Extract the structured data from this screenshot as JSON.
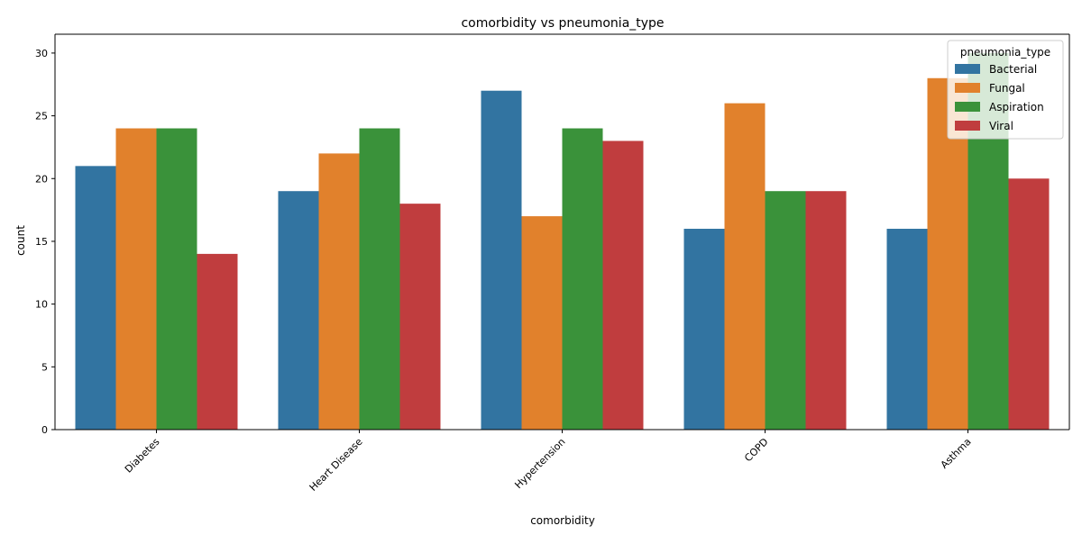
{
  "chart_data": {
    "type": "bar",
    "title": "comorbidity vs pneumonia_type",
    "xlabel": "comorbidity",
    "ylabel": "count",
    "categories": [
      "Diabetes",
      "Heart Disease",
      "Hypertension",
      "COPD",
      "Asthma"
    ],
    "series": [
      {
        "name": "Bacterial",
        "color": "#3274a1",
        "values": [
          21,
          19,
          27,
          16,
          16
        ]
      },
      {
        "name": "Fungal",
        "color": "#e1812c",
        "values": [
          24,
          22,
          17,
          26,
          28
        ]
      },
      {
        "name": "Aspiration",
        "color": "#3a923a",
        "values": [
          24,
          24,
          24,
          19,
          30
        ]
      },
      {
        "name": "Viral",
        "color": "#c03d3e",
        "values": [
          14,
          18,
          23,
          19,
          20
        ]
      }
    ],
    "ylim": [
      0,
      31.5
    ],
    "yticks": [
      0,
      5,
      10,
      15,
      20,
      25,
      30
    ],
    "grid": false,
    "legend": {
      "title": "pneumonia_type",
      "placement": "top-right"
    }
  }
}
